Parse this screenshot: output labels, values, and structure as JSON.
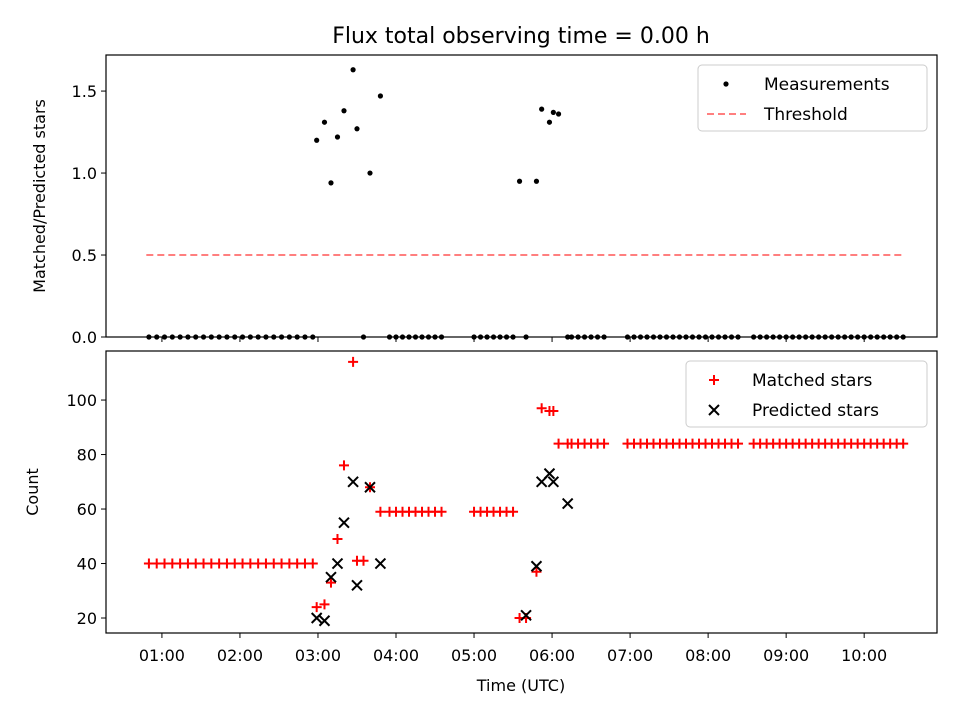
{
  "chart_data": {
    "title": "Flux total observing time = 0.00 h",
    "xlabel": "Time (UTC)",
    "x_ticks": [
      "01:00",
      "02:00",
      "03:00",
      "04:00",
      "05:00",
      "06:00",
      "07:00",
      "08:00",
      "09:00",
      "10:00"
    ],
    "x_range": [
      "00:17",
      "10:56"
    ],
    "panels": [
      {
        "type": "scatter",
        "ylabel": "Matched/Predicted stars",
        "ylim": [
          0,
          1.72
        ],
        "y_ticks": [
          "0.0",
          "0.5",
          "1.0",
          "1.5"
        ],
        "legend_position": "top-right",
        "series": [
          {
            "name": "Measurements",
            "style": "dot",
            "color": "#000000",
            "x": [
              "00:50",
              "00:56",
              "01:02",
              "01:08",
              "01:14",
              "01:20",
              "01:26",
              "01:32",
              "01:38",
              "01:44",
              "01:50",
              "01:56",
              "02:02",
              "02:08",
              "02:14",
              "02:20",
              "02:26",
              "02:32",
              "02:38",
              "02:44",
              "02:50",
              "02:56",
              "02:59",
              "03:05",
              "03:10",
              "03:15",
              "03:20",
              "03:27",
              "03:30",
              "03:35",
              "03:40",
              "03:48",
              "03:55",
              "04:00",
              "04:05",
              "04:10",
              "04:15",
              "04:20",
              "04:25",
              "04:30",
              "04:35",
              "05:00",
              "05:05",
              "05:10",
              "05:15",
              "05:20",
              "05:25",
              "05:30",
              "05:35",
              "05:40",
              "05:48",
              "05:52",
              "05:58",
              "06:01",
              "06:05",
              "06:12",
              "06:15",
              "06:20",
              "06:25",
              "06:30",
              "06:35",
              "06:40",
              "06:58",
              "07:03",
              "07:08",
              "07:13",
              "07:18",
              "07:23",
              "07:28",
              "07:33",
              "07:38",
              "07:43",
              "07:48",
              "07:53",
              "07:58",
              "08:03",
              "08:08",
              "08:13",
              "08:18",
              "08:23",
              "08:35",
              "08:40",
              "08:45",
              "08:50",
              "08:55",
              "09:00",
              "09:05",
              "09:10",
              "09:15",
              "09:20",
              "09:25",
              "09:30",
              "09:35",
              "09:40",
              "09:45",
              "09:50",
              "09:55",
              "10:00",
              "10:05",
              "10:10",
              "10:15",
              "10:20",
              "10:25",
              "10:30"
            ],
            "y": [
              0,
              0,
              0,
              0,
              0,
              0,
              0,
              0,
              0,
              0,
              0,
              0,
              0,
              0,
              0,
              0,
              0,
              0,
              0,
              0,
              0,
              0,
              1.2,
              1.31,
              0.94,
              1.22,
              1.38,
              1.63,
              1.27,
              0,
              1.0,
              1.47,
              0,
              0,
              0,
              0,
              0,
              0,
              0,
              0,
              0,
              0,
              0,
              0,
              0,
              0,
              0,
              0,
              0.95,
              0,
              0.95,
              1.39,
              1.31,
              1.37,
              1.36,
              0,
              0,
              0,
              0,
              0,
              0,
              0,
              0,
              0,
              0,
              0,
              0,
              0,
              0,
              0,
              0,
              0,
              0,
              0,
              0,
              0,
              0,
              0,
              0,
              0,
              0,
              0,
              0,
              0,
              0,
              0,
              0,
              0,
              0,
              0,
              0,
              0,
              0,
              0,
              0,
              0,
              0,
              0,
              0,
              0,
              0,
              0,
              0,
              0
            ]
          },
          {
            "name": "Threshold",
            "style": "dashed-line",
            "color": "#ff7f7f",
            "x": [
              "00:48",
              "10:30"
            ],
            "y": [
              0.5,
              0.5
            ]
          }
        ]
      },
      {
        "type": "scatter",
        "ylabel": "Count",
        "ylim": [
          14.5,
          118
        ],
        "y_ticks": [
          "20",
          "40",
          "60",
          "80",
          "100"
        ],
        "legend_position": "top-right",
        "series": [
          {
            "name": "Matched stars",
            "marker": "plus",
            "color": "#ff0000",
            "x": [
              "00:50",
              "00:56",
              "01:02",
              "01:08",
              "01:14",
              "01:20",
              "01:26",
              "01:32",
              "01:38",
              "01:44",
              "01:50",
              "01:56",
              "02:02",
              "02:08",
              "02:14",
              "02:20",
              "02:26",
              "02:32",
              "02:38",
              "02:44",
              "02:50",
              "02:56",
              "02:59",
              "03:05",
              "03:10",
              "03:15",
              "03:20",
              "03:27",
              "03:30",
              "03:35",
              "03:40",
              "03:48",
              "03:55",
              "04:00",
              "04:05",
              "04:10",
              "04:15",
              "04:20",
              "04:25",
              "04:30",
              "04:35",
              "05:00",
              "05:05",
              "05:10",
              "05:15",
              "05:20",
              "05:25",
              "05:30",
              "05:35",
              "05:40",
              "05:48",
              "05:52",
              "05:58",
              "06:01",
              "06:05",
              "06:12",
              "06:15",
              "06:20",
              "06:25",
              "06:30",
              "06:35",
              "06:40",
              "06:58",
              "07:03",
              "07:08",
              "07:13",
              "07:18",
              "07:23",
              "07:28",
              "07:33",
              "07:38",
              "07:43",
              "07:48",
              "07:53",
              "07:58",
              "08:03",
              "08:08",
              "08:13",
              "08:18",
              "08:23",
              "08:35",
              "08:40",
              "08:45",
              "08:50",
              "08:55",
              "09:00",
              "09:05",
              "09:10",
              "09:15",
              "09:20",
              "09:25",
              "09:30",
              "09:35",
              "09:40",
              "09:45",
              "09:50",
              "09:55",
              "10:00",
              "10:05",
              "10:10",
              "10:15",
              "10:20",
              "10:25",
              "10:30"
            ],
            "y": [
              40,
              40,
              40,
              40,
              40,
              40,
              40,
              40,
              40,
              40,
              40,
              40,
              40,
              40,
              40,
              40,
              40,
              40,
              40,
              40,
              40,
              40,
              24,
              25,
              33,
              49,
              76,
              114,
              41,
              41,
              68,
              59,
              59,
              59,
              59,
              59,
              59,
              59,
              59,
              59,
              59,
              59,
              59,
              59,
              59,
              59,
              59,
              59,
              20,
              20,
              37,
              97,
              96,
              96,
              84,
              84,
              84,
              84,
              84,
              84,
              84,
              84,
              84,
              84,
              84,
              84,
              84,
              84,
              84,
              84,
              84,
              84,
              84,
              84,
              84,
              84,
              84,
              84,
              84,
              84,
              84,
              84,
              84,
              84,
              84,
              84,
              84,
              84,
              84,
              84,
              84,
              84,
              84,
              84,
              84,
              84,
              84,
              84,
              84,
              84,
              84,
              84,
              84,
              84
            ]
          },
          {
            "name": "Predicted stars",
            "marker": "x",
            "color": "#000000",
            "x": [
              "02:59",
              "03:05",
              "03:10",
              "03:15",
              "03:20",
              "03:27",
              "03:30",
              "03:40",
              "03:48",
              "05:40",
              "05:48",
              "05:52",
              "05:58",
              "06:01",
              "06:12"
            ],
            "y": [
              20,
              19,
              35,
              40,
              55,
              70,
              32,
              68,
              40,
              21,
              39,
              70,
              73,
              70,
              62
            ]
          }
        ]
      }
    ]
  }
}
